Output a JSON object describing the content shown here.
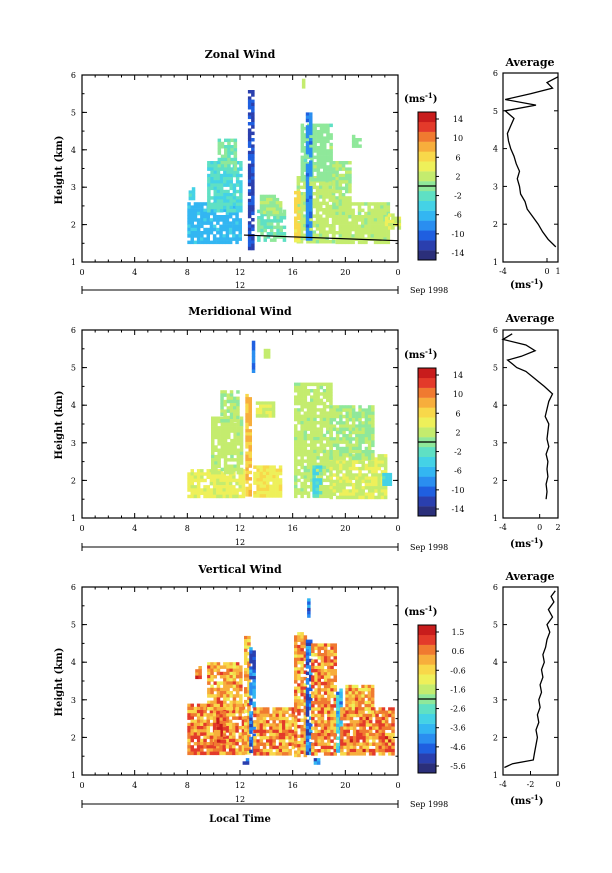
{
  "colorscale": [
    "#2b2f7a",
    "#2a3fae",
    "#1f5fe0",
    "#2a8ef0",
    "#33b6f2",
    "#44d2e6",
    "#5fe0c4",
    "#8fe89a",
    "#c4ec6e",
    "#eef05a",
    "#f8d84a",
    "#f7ae3c",
    "#f07a30",
    "#e33a2a",
    "#c81c1c"
  ],
  "chart_data": [
    {
      "type": "heatmap",
      "title": "Zonal Wind",
      "ylabel": "Height (km)",
      "xlim": [
        0,
        24
      ],
      "ylim": [
        1,
        6
      ],
      "xticks": [
        "0",
        "4",
        "8",
        "12",
        "16",
        "20",
        "0"
      ],
      "yticks": [
        "1",
        "2",
        "3",
        "4",
        "5",
        "6"
      ],
      "date_label": "12",
      "date_suffix": "Sep 1998",
      "colorbar": {
        "unit": "(ms",
        "unit_sup": "-1",
        "unit_close": ")",
        "labels": [
          "14",
          "10",
          "6",
          "2",
          "-2",
          "-6",
          "-10",
          "-14"
        ],
        "range": [
          -15,
          15
        ]
      },
      "patches": [
        {
          "x0": 8.0,
          "x1": 12.0,
          "y0": 1.55,
          "y1": 2.6,
          "v": -6
        },
        {
          "x0": 9.5,
          "x1": 12.0,
          "y0": 2.4,
          "y1": 3.7,
          "v": -3
        },
        {
          "x0": 10.3,
          "x1": 11.6,
          "y0": 3.5,
          "y1": 4.3,
          "v": -1
        },
        {
          "x0": 8.1,
          "x1": 8.4,
          "y0": 2.7,
          "y1": 3.0,
          "v": -4
        },
        {
          "x0": 12.6,
          "x1": 12.9,
          "y0": 1.4,
          "y1": 5.6,
          "v": -12
        },
        {
          "x0": 13.3,
          "x1": 15.4,
          "y0": 1.55,
          "y1": 2.4,
          "v": -1
        },
        {
          "x0": 13.5,
          "x1": 15.0,
          "y0": 2.3,
          "y1": 2.8,
          "v": 1
        },
        {
          "x0": 16.3,
          "x1": 19.0,
          "y0": 1.55,
          "y1": 3.3,
          "v": 2
        },
        {
          "x0": 16.6,
          "x1": 18.8,
          "y0": 3.2,
          "y1": 4.7,
          "v": 0
        },
        {
          "x0": 17.0,
          "x1": 17.4,
          "y0": 1.6,
          "y1": 5.0,
          "v": -9
        },
        {
          "x0": 16.1,
          "x1": 16.5,
          "y0": 1.55,
          "y1": 2.9,
          "v": 6
        },
        {
          "x0": 19.0,
          "x1": 23.2,
          "y0": 1.55,
          "y1": 2.6,
          "v": 2
        },
        {
          "x0": 19.0,
          "x1": 20.3,
          "y0": 2.5,
          "y1": 3.7,
          "v": 1
        },
        {
          "x0": 20.5,
          "x1": 21.0,
          "y0": 4.1,
          "y1": 4.4,
          "v": 0
        },
        {
          "x0": 23.0,
          "x1": 24.0,
          "y0": 1.9,
          "y1": 2.3,
          "v": 3
        },
        {
          "x0": 16.7,
          "x1": 16.9,
          "y0": 5.7,
          "y1": 5.9,
          "v": 1
        }
      ],
      "profile": {
        "xlim": [
          -4,
          1
        ],
        "xticks": [
          "-4",
          "0",
          "1"
        ],
        "ylim": [
          1,
          6
        ],
        "yticks": [
          "1",
          "2",
          "3",
          "4",
          "5",
          "6"
        ],
        "x": [
          0.8,
          0.1,
          -0.4,
          -0.8,
          -1.3,
          -1.8,
          -2.0,
          -2.4,
          -2.5,
          -2.7,
          -2.5,
          -2.8,
          -3.0,
          -3.3,
          -3.5,
          -3.6,
          -3.3,
          -3.0,
          -3.8,
          -1.0,
          -3.8,
          -1.5,
          0.5,
          0.0,
          1.0
        ],
        "y": [
          1.4,
          1.6,
          1.8,
          2.0,
          2.2,
          2.4,
          2.6,
          2.8,
          3.0,
          3.2,
          3.4,
          3.6,
          3.8,
          4.0,
          4.2,
          4.4,
          4.6,
          4.8,
          5.0,
          5.15,
          5.3,
          5.45,
          5.6,
          5.75,
          5.9
        ]
      }
    },
    {
      "type": "heatmap",
      "title": "Meridional Wind",
      "ylabel": "Height (km)",
      "xlim": [
        0,
        24
      ],
      "ylim": [
        1,
        6
      ],
      "xticks": [
        "0",
        "4",
        "8",
        "12",
        "16",
        "20",
        "0"
      ],
      "yticks": [
        "1",
        "2",
        "3",
        "4",
        "5",
        "6"
      ],
      "date_label": "12",
      "date_suffix": "Sep 1998",
      "colorbar": {
        "unit": "(ms",
        "unit_sup": "-1",
        "unit_close": ")",
        "labels": [
          "14",
          "10",
          "6",
          "2",
          "-2",
          "-6",
          "-10",
          "-14"
        ],
        "range": [
          -15,
          15
        ]
      },
      "patches": [
        {
          "x0": 8.0,
          "x1": 12.2,
          "y0": 1.55,
          "y1": 2.3,
          "v": 4
        },
        {
          "x0": 9.8,
          "x1": 12.2,
          "y0": 2.2,
          "y1": 3.7,
          "v": 2
        },
        {
          "x0": 10.5,
          "x1": 11.8,
          "y0": 3.6,
          "y1": 4.4,
          "v": 1
        },
        {
          "x0": 12.4,
          "x1": 12.7,
          "y0": 1.6,
          "y1": 4.3,
          "v": 8
        },
        {
          "x0": 12.9,
          "x1": 13.1,
          "y0": 4.9,
          "y1": 5.8,
          "v": -10
        },
        {
          "x0": 13.0,
          "x1": 15.0,
          "y0": 1.55,
          "y1": 2.4,
          "v": 5
        },
        {
          "x0": 13.2,
          "x1": 14.5,
          "y0": 3.7,
          "y1": 4.1,
          "v": 3
        },
        {
          "x0": 16.1,
          "x1": 18.8,
          "y0": 1.55,
          "y1": 4.6,
          "v": 2
        },
        {
          "x0": 17.5,
          "x1": 18.0,
          "y0": 1.55,
          "y1": 2.4,
          "v": -3
        },
        {
          "x0": 18.8,
          "x1": 23.0,
          "y0": 1.55,
          "y1": 2.7,
          "v": 3
        },
        {
          "x0": 18.8,
          "x1": 22.0,
          "y0": 2.6,
          "y1": 4.0,
          "v": 1
        },
        {
          "x0": 22.8,
          "x1": 23.4,
          "y0": 1.9,
          "y1": 2.2,
          "v": -4
        },
        {
          "x0": 13.8,
          "x1": 14.2,
          "y0": 5.3,
          "y1": 5.5,
          "v": 2
        }
      ],
      "profile": {
        "xlim": [
          -4,
          2
        ],
        "xticks": [
          "-4",
          "0",
          "2"
        ],
        "ylim": [
          1,
          6
        ],
        "yticks": [
          "1",
          "2",
          "3",
          "4",
          "5",
          "6"
        ],
        "x": [
          0.7,
          0.8,
          0.7,
          0.9,
          0.8,
          0.9,
          0.7,
          1.0,
          0.8,
          0.9,
          1.0,
          0.6,
          0.8,
          1.0,
          1.4,
          0.5,
          -0.5,
          -1.5,
          -2.5,
          -3.0,
          -3.5,
          -2.0,
          -0.5,
          -1.5,
          -4.0,
          -3.0
        ],
        "y": [
          1.5,
          1.7,
          1.9,
          2.1,
          2.3,
          2.5,
          2.7,
          2.9,
          3.1,
          3.3,
          3.5,
          3.7,
          3.9,
          4.1,
          4.3,
          4.5,
          4.7,
          4.9,
          5.0,
          5.1,
          5.2,
          5.3,
          5.45,
          5.6,
          5.75,
          5.9
        ]
      }
    },
    {
      "type": "heatmap",
      "title": "Vertical Wind",
      "ylabel": "Height (km)",
      "xlabel": "Local Time",
      "xlim": [
        0,
        24
      ],
      "ylim": [
        1,
        6
      ],
      "xticks": [
        "0",
        "4",
        "8",
        "12",
        "16",
        "20",
        "0"
      ],
      "yticks": [
        "1",
        "2",
        "3",
        "4",
        "5",
        "6"
      ],
      "date_label": "12",
      "date_suffix": "Sep 1998",
      "colorbar": {
        "unit": "(ms",
        "unit_sup": "-1",
        "unit_close": ")",
        "labels": [
          "1.5",
          "0.6",
          "-0.6",
          "-1.6",
          "-2.6",
          "-3.6",
          "-4.6",
          "-5.6"
        ],
        "range": [
          -6,
          2
        ]
      },
      "patches": [
        {
          "x0": 8.0,
          "x1": 12.2,
          "y0": 1.55,
          "y1": 2.9,
          "v": 0.6
        },
        {
          "x0": 9.5,
          "x1": 12.0,
          "y0": 2.8,
          "y1": 4.0,
          "v": 0.3
        },
        {
          "x0": 10.2,
          "x1": 10.7,
          "y0": 1.9,
          "y1": 2.7,
          "v": 1.5
        },
        {
          "x0": 10.0,
          "x1": 10.3,
          "y0": 1.8,
          "y1": 2.2,
          "v": 1.1
        },
        {
          "x0": 12.3,
          "x1": 12.6,
          "y0": 1.6,
          "y1": 4.7,
          "v": 0.1
        },
        {
          "x0": 12.7,
          "x1": 13.0,
          "y0": 1.6,
          "y1": 4.4,
          "v": -4.6
        },
        {
          "x0": 13.0,
          "x1": 16.0,
          "y0": 1.55,
          "y1": 2.8,
          "v": 0.5
        },
        {
          "x0": 16.1,
          "x1": 17.0,
          "y0": 1.55,
          "y1": 4.8,
          "v": 0.4
        },
        {
          "x0": 17.0,
          "x1": 17.4,
          "y0": 1.6,
          "y1": 4.6,
          "v": -4.6
        },
        {
          "x0": 17.4,
          "x1": 19.3,
          "y0": 1.55,
          "y1": 4.5,
          "v": 0.5
        },
        {
          "x0": 19.3,
          "x1": 19.6,
          "y0": 1.6,
          "y1": 3.3,
          "v": -3.6
        },
        {
          "x0": 19.6,
          "x1": 23.5,
          "y0": 1.55,
          "y1": 2.8,
          "v": 0.7
        },
        {
          "x0": 20.0,
          "x1": 22.0,
          "y0": 2.7,
          "y1": 3.4,
          "v": 0.2
        },
        {
          "x0": 17.1,
          "x1": 17.3,
          "y0": 5.2,
          "y1": 5.7,
          "v": -4.6
        },
        {
          "x0": 12.2,
          "x1": 12.5,
          "y0": 1.3,
          "y1": 1.45,
          "v": -4.6
        },
        {
          "x0": 17.6,
          "x1": 17.9,
          "y0": 1.3,
          "y1": 1.45,
          "v": -4.6
        },
        {
          "x0": 8.6,
          "x1": 8.9,
          "y0": 3.6,
          "y1": 3.9,
          "v": 0.8
        }
      ],
      "profile": {
        "xlim": [
          -4,
          0
        ],
        "xticks": [
          "-4",
          "-2",
          "0"
        ],
        "ylim": [
          1,
          6
        ],
        "yticks": [
          "1",
          "2",
          "3",
          "4",
          "5",
          "6"
        ],
        "x": [
          -3.9,
          -3.3,
          -1.8,
          -1.7,
          -1.6,
          -1.5,
          -1.6,
          -1.4,
          -1.5,
          -1.3,
          -1.4,
          -1.2,
          -1.3,
          -1.1,
          -1.2,
          -1.0,
          -1.1,
          -0.9,
          -0.8,
          -0.6,
          -0.8,
          -0.4,
          -0.7,
          -0.3,
          -0.5,
          -0.2
        ],
        "y": [
          1.2,
          1.3,
          1.4,
          1.6,
          1.8,
          2.0,
          2.2,
          2.4,
          2.6,
          2.8,
          3.0,
          3.2,
          3.4,
          3.6,
          3.8,
          4.0,
          4.2,
          4.4,
          4.6,
          4.8,
          5.0,
          5.2,
          5.4,
          5.6,
          5.75,
          5.9
        ]
      }
    }
  ],
  "profile_title": "Average",
  "profile_unit": "(ms",
  "profile_unit_sup": "-1",
  "profile_unit_close": ")"
}
